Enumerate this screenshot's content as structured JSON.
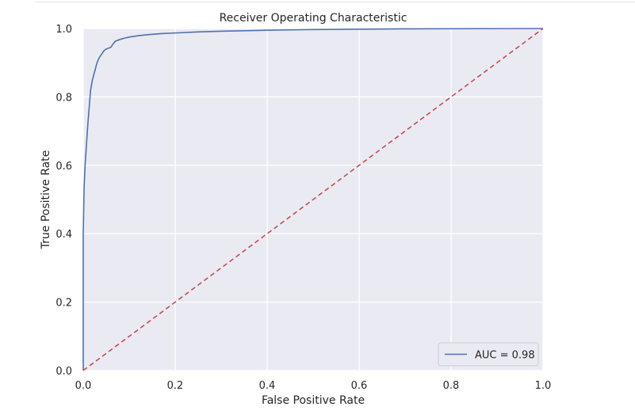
{
  "chart_data": {
    "type": "line",
    "title": "Receiver Operating Characteristic",
    "xlabel": "False Positive Rate",
    "ylabel": "True Positive Rate",
    "xlim": [
      0,
      1
    ],
    "ylim": [
      0,
      1
    ],
    "x_ticks": [
      "0.0",
      "0.2",
      "0.4",
      "0.6",
      "0.8",
      "1.0"
    ],
    "y_ticks": [
      "0.0",
      "0.2",
      "0.4",
      "0.6",
      "0.8",
      "1.0"
    ],
    "grid": true,
    "legend_position": "lower-right",
    "series": [
      {
        "name": "AUC = 0.98",
        "color": "#4c72b0",
        "style": "solid",
        "x": [
          0.0,
          0.0,
          0.002,
          0.004,
          0.007,
          0.01,
          0.013,
          0.016,
          0.02,
          0.025,
          0.03,
          0.035,
          0.04,
          0.045,
          0.05,
          0.06,
          0.065,
          0.07,
          0.08,
          0.09,
          0.1,
          0.12,
          0.14,
          0.17,
          0.2,
          0.25,
          0.3,
          0.4,
          0.5,
          0.7,
          1.0
        ],
        "y": [
          0.0,
          0.4,
          0.54,
          0.6,
          0.66,
          0.72,
          0.77,
          0.82,
          0.85,
          0.875,
          0.9,
          0.915,
          0.925,
          0.935,
          0.94,
          0.945,
          0.955,
          0.963,
          0.968,
          0.972,
          0.975,
          0.979,
          0.982,
          0.985,
          0.987,
          0.99,
          0.992,
          0.995,
          0.997,
          0.999,
          1.0
        ]
      },
      {
        "name": "",
        "color": "#c44e52",
        "style": "dashed",
        "x": [
          0,
          1
        ],
        "y": [
          0,
          1
        ]
      }
    ]
  }
}
